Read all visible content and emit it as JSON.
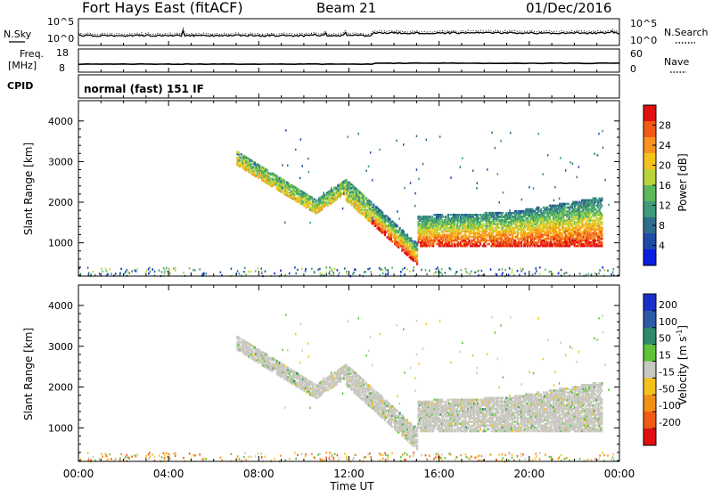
{
  "header": {
    "station": "Fort Hays East (fitACF)",
    "beam": "Beam 21",
    "date": "01/Dec/2016"
  },
  "status_panels": {
    "nsky_label": "N.Sky",
    "nsearch_label": "N.Search",
    "noise_left_ticks": [
      "10^5",
      "10^0"
    ],
    "noise_right_ticks": [
      "10^5",
      "10^0"
    ],
    "freq_label_1": "Freq.",
    "freq_label_2": "[MHz]",
    "freq_ticks": [
      "18",
      "8"
    ],
    "nave_label": "Nave",
    "nave_ticks": [
      "60",
      "0"
    ],
    "cpid_label": "CPID",
    "cpid_text": "normal (fast) 151 IF"
  },
  "axes": {
    "ylabel": "Slant Range [km]",
    "xlabel": "Time UT",
    "yticks": [
      "1000",
      "2000",
      "3000",
      "4000"
    ],
    "xticks": [
      "00:00",
      "04:00",
      "08:00",
      "12:00",
      "16:00",
      "20:00",
      "00:00"
    ]
  },
  "chart_data": [
    {
      "type": "heatmap",
      "title": "",
      "xlabel": "",
      "ylabel": "Slant Range [km]",
      "xlim": [
        0,
        24
      ],
      "ylim": [
        180,
        4500
      ],
      "colorbar": {
        "label": "Power [dB]",
        "ticks": [
          "28",
          "24",
          "20",
          "16",
          "12",
          "8",
          "4"
        ],
        "tick_values": [
          28,
          24,
          20,
          16,
          12,
          8,
          4
        ],
        "range": [
          0,
          32
        ],
        "colors": [
          "#0a1fe0",
          "#1f4aa8",
          "#2f6e8c",
          "#3e9a78",
          "#5cb85a",
          "#b9d43a",
          "#f4c21c",
          "#f7931e",
          "#f25a14",
          "#e01010"
        ]
      }
    },
    {
      "type": "heatmap",
      "title": "",
      "xlabel": "Time UT",
      "ylabel": "Slant Range [km]",
      "xlim": [
        0,
        24
      ],
      "ylim": [
        180,
        4500
      ],
      "colorbar": {
        "label": "Velocity [m s^-1]",
        "ticks": [
          "200",
          "100",
          "50",
          "15",
          "-15",
          "-50",
          "-100",
          "-200"
        ],
        "colors": [
          "#1a2fc8",
          "#2a5aa8",
          "#2f8a6a",
          "#5fc23a",
          "#c8c8c0",
          "#f4c21c",
          "#f39018",
          "#f05a14",
          "#e01010"
        ]
      }
    }
  ]
}
